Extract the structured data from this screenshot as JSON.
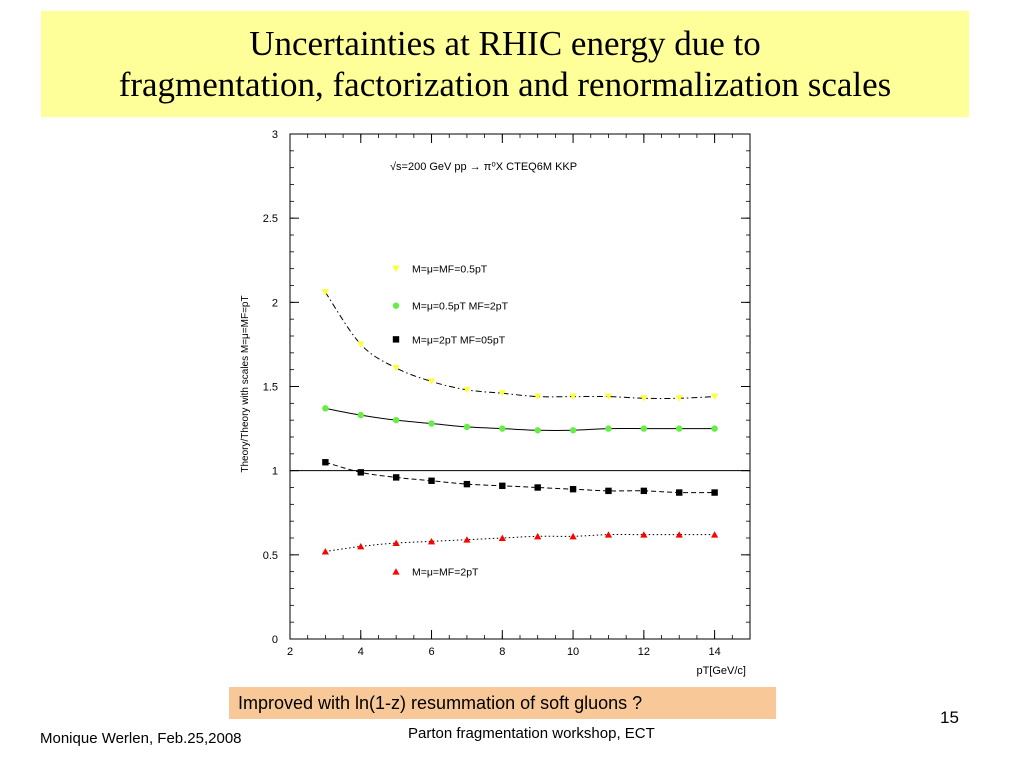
{
  "slide": {
    "title_line1": "Uncertainties at RHIC energy due to",
    "title_line2": "fragmentation, factorization and renormalization scales",
    "footnote": "Improved with ln(1-z) resummation  of soft gluons ?",
    "footer_author": "Monique Werlen, Feb.25,2008",
    "footer_workshop": "Parton fragmentation workshop, ECT",
    "slide_number": "15"
  },
  "chart_data": {
    "type": "scatter",
    "annotation": "√s=200 GeV pp → π⁰X CTEQ6M KKP",
    "xlabel": "pT[GeV/c]",
    "ylabel": "Theory/Theory with scales M=μ=MF=pT",
    "xlim": [
      2,
      15
    ],
    "ylim": [
      0,
      3
    ],
    "xticks": [
      "2",
      "4",
      "6",
      "8",
      "10",
      "12",
      "14"
    ],
    "yticks": [
      "0",
      "0.5",
      "1",
      "1.5",
      "2",
      "2.5",
      "3"
    ],
    "reference_line": 1,
    "x": [
      3,
      4,
      5,
      6,
      7,
      8,
      9,
      10,
      11,
      12,
      13,
      14
    ],
    "series": [
      {
        "name": "M=μ=MF=0.5pT",
        "marker": "triangle-down",
        "color": "#ffff33",
        "line": "dashdot",
        "values": [
          2.06,
          1.75,
          1.61,
          1.53,
          1.48,
          1.46,
          1.44,
          1.44,
          1.44,
          1.43,
          1.43,
          1.44
        ]
      },
      {
        "name": "M=μ=0.5pT MF=2pT",
        "marker": "circle",
        "color": "#66ee44",
        "line": "solid",
        "values": [
          1.37,
          1.33,
          1.3,
          1.28,
          1.26,
          1.25,
          1.24,
          1.24,
          1.25,
          1.25,
          1.25,
          1.25
        ]
      },
      {
        "name": "M=μ=2pT MF=05pT",
        "marker": "square",
        "color": "#000000",
        "line": "dashed",
        "values": [
          1.05,
          0.99,
          0.96,
          0.94,
          0.92,
          0.91,
          0.9,
          0.89,
          0.88,
          0.88,
          0.87,
          0.87
        ]
      },
      {
        "name": "M=μ=MF=2pT",
        "marker": "triangle-up",
        "color": "#ff0000",
        "line": "dotted",
        "values": [
          0.52,
          0.55,
          0.57,
          0.58,
          0.59,
          0.6,
          0.61,
          0.61,
          0.62,
          0.62,
          0.62,
          0.62
        ]
      }
    ],
    "grid": false,
    "legend_position": "inside"
  }
}
